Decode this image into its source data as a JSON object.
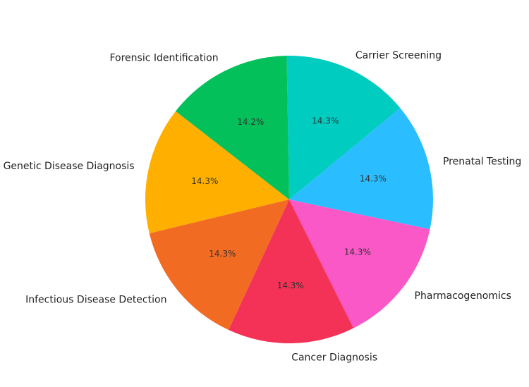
{
  "chart_data": {
    "type": "pie",
    "title": "",
    "slices": [
      {
        "label": "Carrier Screening",
        "pct_label": "14.3%",
        "value": 14.3,
        "color": "#00CCC0"
      },
      {
        "label": "Prenatal Testing",
        "pct_label": "14.3%",
        "value": 14.3,
        "color": "#2ABDFF"
      },
      {
        "label": "Pharmacogenomics",
        "pct_label": "14.3%",
        "value": 14.3,
        "color": "#F958C6"
      },
      {
        "label": "Cancer Diagnosis",
        "pct_label": "14.3%",
        "value": 14.3,
        "color": "#F43156"
      },
      {
        "label": "Infectious Disease Detection",
        "pct_label": "14.3%",
        "value": 14.3,
        "color": "#F26B22"
      },
      {
        "label": "Genetic Disease Diagnosis",
        "pct_label": "14.3%",
        "value": 14.3,
        "color": "#FFAF00"
      },
      {
        "label": "Forensic Identification",
        "pct_label": "14.2%",
        "value": 14.2,
        "color": "#03C05A"
      }
    ],
    "start_angle_deg": 91,
    "direction": "clockwise",
    "legend": "none"
  }
}
